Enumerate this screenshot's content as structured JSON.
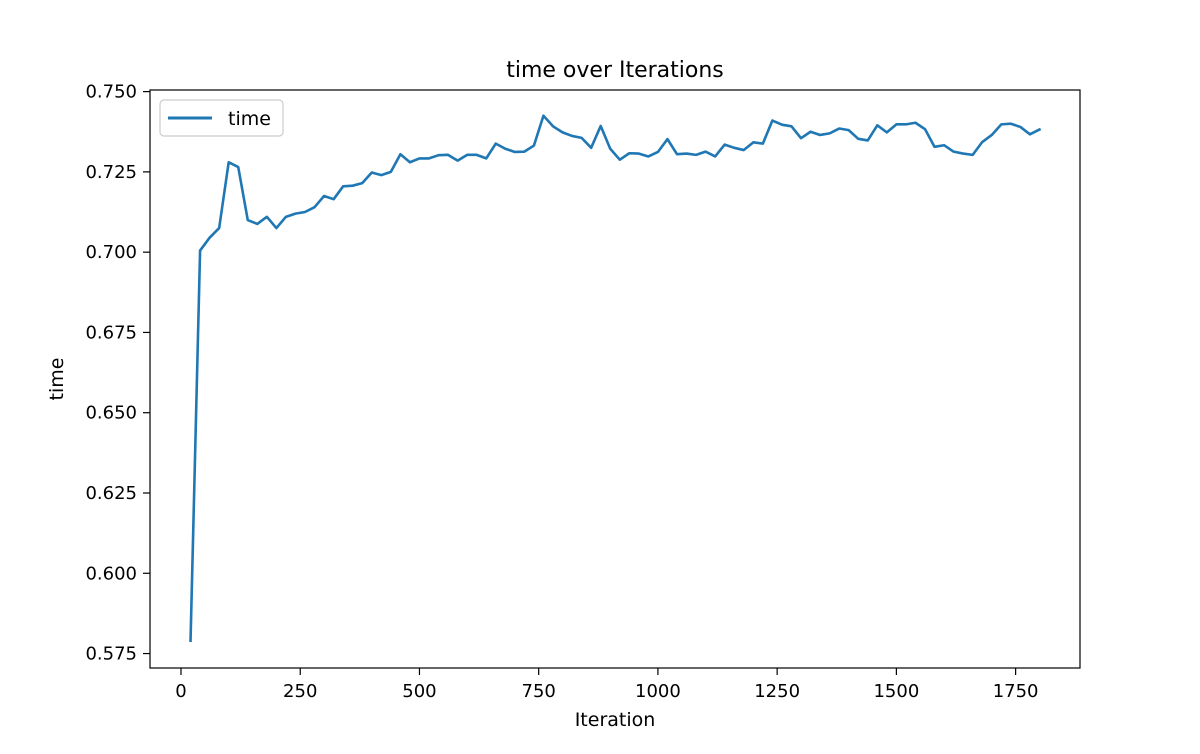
{
  "chart_data": {
    "type": "line",
    "title": "time over Iterations",
    "xlabel": "Iteration",
    "ylabel": "time",
    "xlim": [
      -65,
      1885
    ],
    "ylim": [
      0.5705,
      0.7505
    ],
    "xticks": [
      0,
      250,
      500,
      750,
      1000,
      1250,
      1500,
      1750
    ],
    "xtick_labels": [
      "0",
      "250",
      "500",
      "750",
      "1000",
      "1250",
      "1500",
      "1750"
    ],
    "yticks": [
      0.575,
      0.6,
      0.625,
      0.65,
      0.675,
      0.7,
      0.725,
      0.75
    ],
    "ytick_labels": [
      "0.575",
      "0.600",
      "0.625",
      "0.650",
      "0.675",
      "0.700",
      "0.725",
      "0.750"
    ],
    "grid": false,
    "legend": {
      "position": "top-left",
      "entries": [
        "time"
      ]
    },
    "series": [
      {
        "name": "time",
        "color": "#1f77b4",
        "x": [
          20,
          40,
          60,
          80,
          100,
          120,
          140,
          160,
          180,
          200,
          220,
          240,
          260,
          280,
          300,
          320,
          340,
          360,
          380,
          400,
          420,
          440,
          460,
          480,
          500,
          520,
          540,
          560,
          580,
          600,
          620,
          640,
          660,
          680,
          700,
          720,
          740,
          760,
          780,
          800,
          820,
          840,
          860,
          880,
          900,
          920,
          940,
          960,
          980,
          1000,
          1020,
          1040,
          1060,
          1080,
          1100,
          1120,
          1140,
          1160,
          1180,
          1200,
          1220,
          1240,
          1260,
          1280,
          1300,
          1320,
          1340,
          1360,
          1380,
          1400,
          1420,
          1440,
          1460,
          1480,
          1500,
          1520,
          1540,
          1560,
          1580,
          1600,
          1620,
          1640,
          1660,
          1680,
          1700,
          1720,
          1740,
          1760,
          1780,
          1800
        ],
        "y": [
          0.579,
          0.7005,
          0.7045,
          0.7075,
          0.728,
          0.7265,
          0.71,
          0.7088,
          0.711,
          0.7075,
          0.711,
          0.712,
          0.7125,
          0.714,
          0.7175,
          0.7165,
          0.7205,
          0.7207,
          0.7215,
          0.7248,
          0.724,
          0.725,
          0.7305,
          0.728,
          0.7292,
          0.7292,
          0.7302,
          0.7303,
          0.7285,
          0.7303,
          0.7303,
          0.7292,
          0.7338,
          0.7322,
          0.7312,
          0.7313,
          0.7332,
          0.7425,
          0.7392,
          0.7373,
          0.7362,
          0.7356,
          0.7325,
          0.7393,
          0.7322,
          0.7288,
          0.7308,
          0.7307,
          0.7298,
          0.7312,
          0.7352,
          0.7305,
          0.7307,
          0.7303,
          0.7313,
          0.7298,
          0.7335,
          0.7325,
          0.7318,
          0.7342,
          0.7338,
          0.741,
          0.7397,
          0.7392,
          0.7355,
          0.7375,
          0.7365,
          0.737,
          0.7385,
          0.738,
          0.7353,
          0.7348,
          0.7395,
          0.7373,
          0.7398,
          0.7398,
          0.7403,
          0.7383,
          0.7328,
          0.7333,
          0.7313,
          0.7307,
          0.7303,
          0.7343,
          0.7365,
          0.7398,
          0.74,
          0.739,
          0.7367,
          0.7382
        ]
      }
    ]
  }
}
